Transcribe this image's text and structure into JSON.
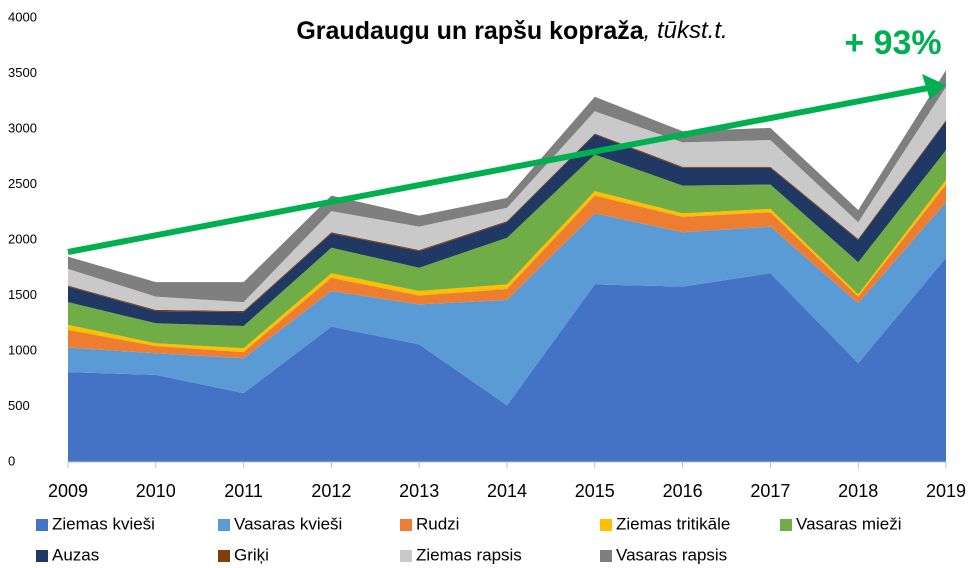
{
  "chart_data": {
    "type": "stacked_area",
    "title": "Graudaugu un rapšu kopraža",
    "subtitle": ", tūkst.t.",
    "annotation": "+ 93%",
    "categories": [
      "2009",
      "2010",
      "2011",
      "2012",
      "2013",
      "2014",
      "2015",
      "2016",
      "2017",
      "2018",
      "2019"
    ],
    "ylim": [
      0,
      4000
    ],
    "yticks": [
      0,
      500,
      1000,
      1500,
      2000,
      2500,
      3000,
      3500,
      4000
    ],
    "grid": false,
    "legend": "bottom",
    "series": [
      {
        "name": "Ziemas kvieši",
        "color": "#4472c4",
        "values": [
          810,
          785,
          620,
          1220,
          1060,
          510,
          1600,
          1580,
          1700,
          890,
          1840
        ]
      },
      {
        "name": "Vasaras kvieši",
        "color": "#5b9bd5",
        "values": [
          220,
          195,
          315,
          320,
          360,
          950,
          640,
          490,
          420,
          540,
          500
        ]
      },
      {
        "name": "Rudzi",
        "color": "#ed7d31",
        "values": [
          160,
          65,
          55,
          120,
          80,
          100,
          160,
          140,
          130,
          60,
          160
        ]
      },
      {
        "name": "Ziemas tritikāle",
        "color": "#ffc000",
        "values": [
          45,
          25,
          35,
          40,
          40,
          40,
          40,
          30,
          30,
          20,
          40
        ]
      },
      {
        "name": "Vasaras mieži",
        "color": "#70ad47",
        "values": [
          205,
          180,
          200,
          230,
          210,
          420,
          330,
          250,
          220,
          290,
          270
        ]
      },
      {
        "name": "Auzas",
        "color": "#203864",
        "values": [
          140,
          110,
          125,
          130,
          150,
          140,
          180,
          160,
          150,
          200,
          260
        ]
      },
      {
        "name": "Griķi",
        "color": "#843c0c",
        "values": [
          10,
          10,
          10,
          10,
          10,
          10,
          10,
          10,
          10,
          10,
          10
        ]
      },
      {
        "name": "Ziemas rapsis",
        "color": "#c9c9c9",
        "values": [
          150,
          120,
          80,
          190,
          210,
          120,
          200,
          220,
          240,
          150,
          300
        ]
      },
      {
        "name": "Vasaras rapsis",
        "color": "#7f7f7f",
        "values": [
          110,
          130,
          180,
          140,
          100,
          90,
          130,
          100,
          110,
          110,
          150
        ]
      }
    ]
  }
}
